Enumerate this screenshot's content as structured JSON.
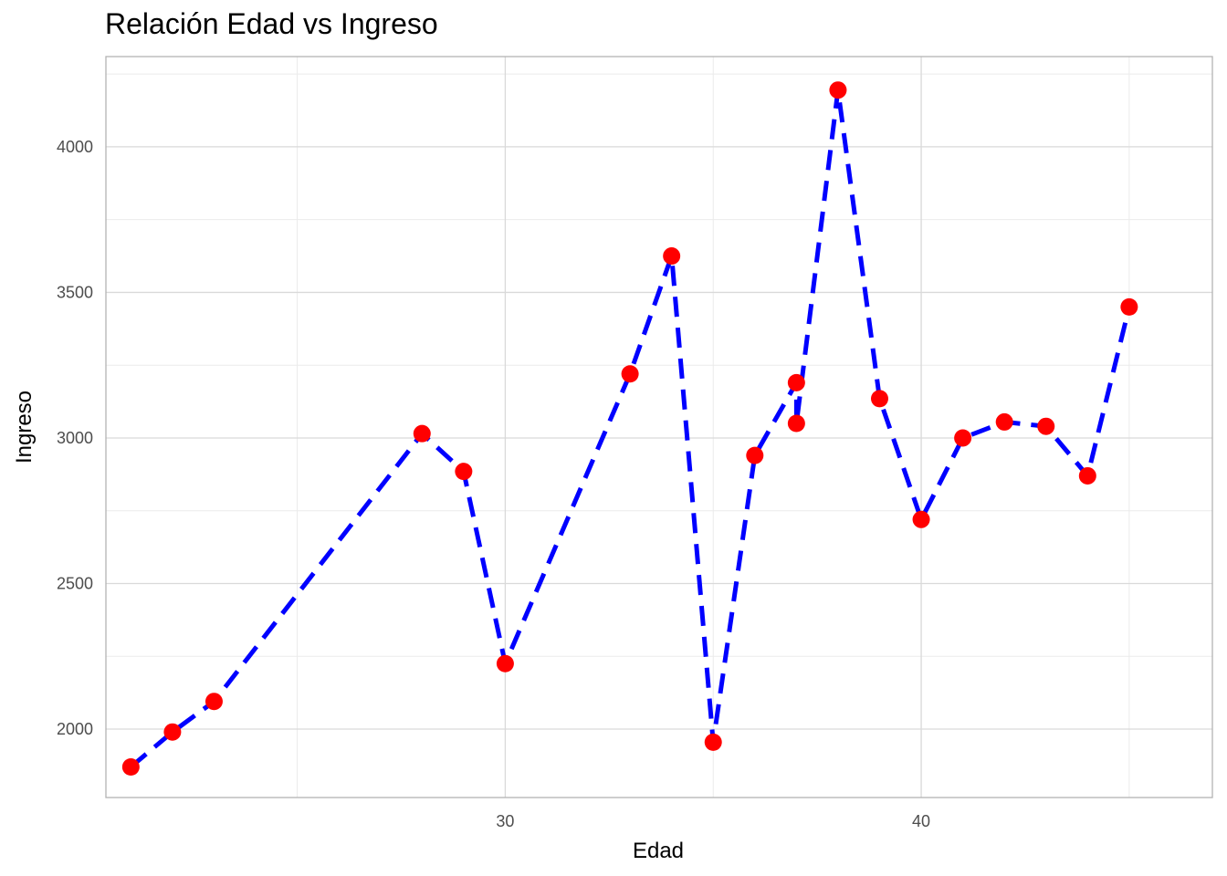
{
  "chart_data": {
    "type": "line",
    "title": "Relación Edad vs Ingreso",
    "xlabel": "Edad",
    "ylabel": "Ingreso",
    "xlim": [
      20.4,
      47.0
    ],
    "ylim": [
      1765,
      4310
    ],
    "x_major_ticks": [
      30,
      40
    ],
    "x_minor_ticks": [
      25,
      35,
      45
    ],
    "y_major_ticks": [
      2000,
      2500,
      3000,
      3500,
      4000
    ],
    "y_minor_ticks": [
      2250,
      2750,
      3250,
      3750,
      4250
    ],
    "grid": true,
    "line_style": "dashed",
    "line_color": "#0000ff",
    "point_color": "#ff0000",
    "x": [
      21,
      22,
      23,
      28,
      29,
      30,
      33,
      34,
      35,
      36,
      37,
      37,
      38,
      39,
      40,
      41,
      42,
      43,
      44,
      45
    ],
    "y": [
      1870,
      1990,
      2095,
      3015,
      2885,
      2225,
      3220,
      3625,
      1955,
      2940,
      3190,
      3050,
      4195,
      3135,
      2720,
      3000,
      3055,
      3040,
      2870,
      3450
    ]
  }
}
